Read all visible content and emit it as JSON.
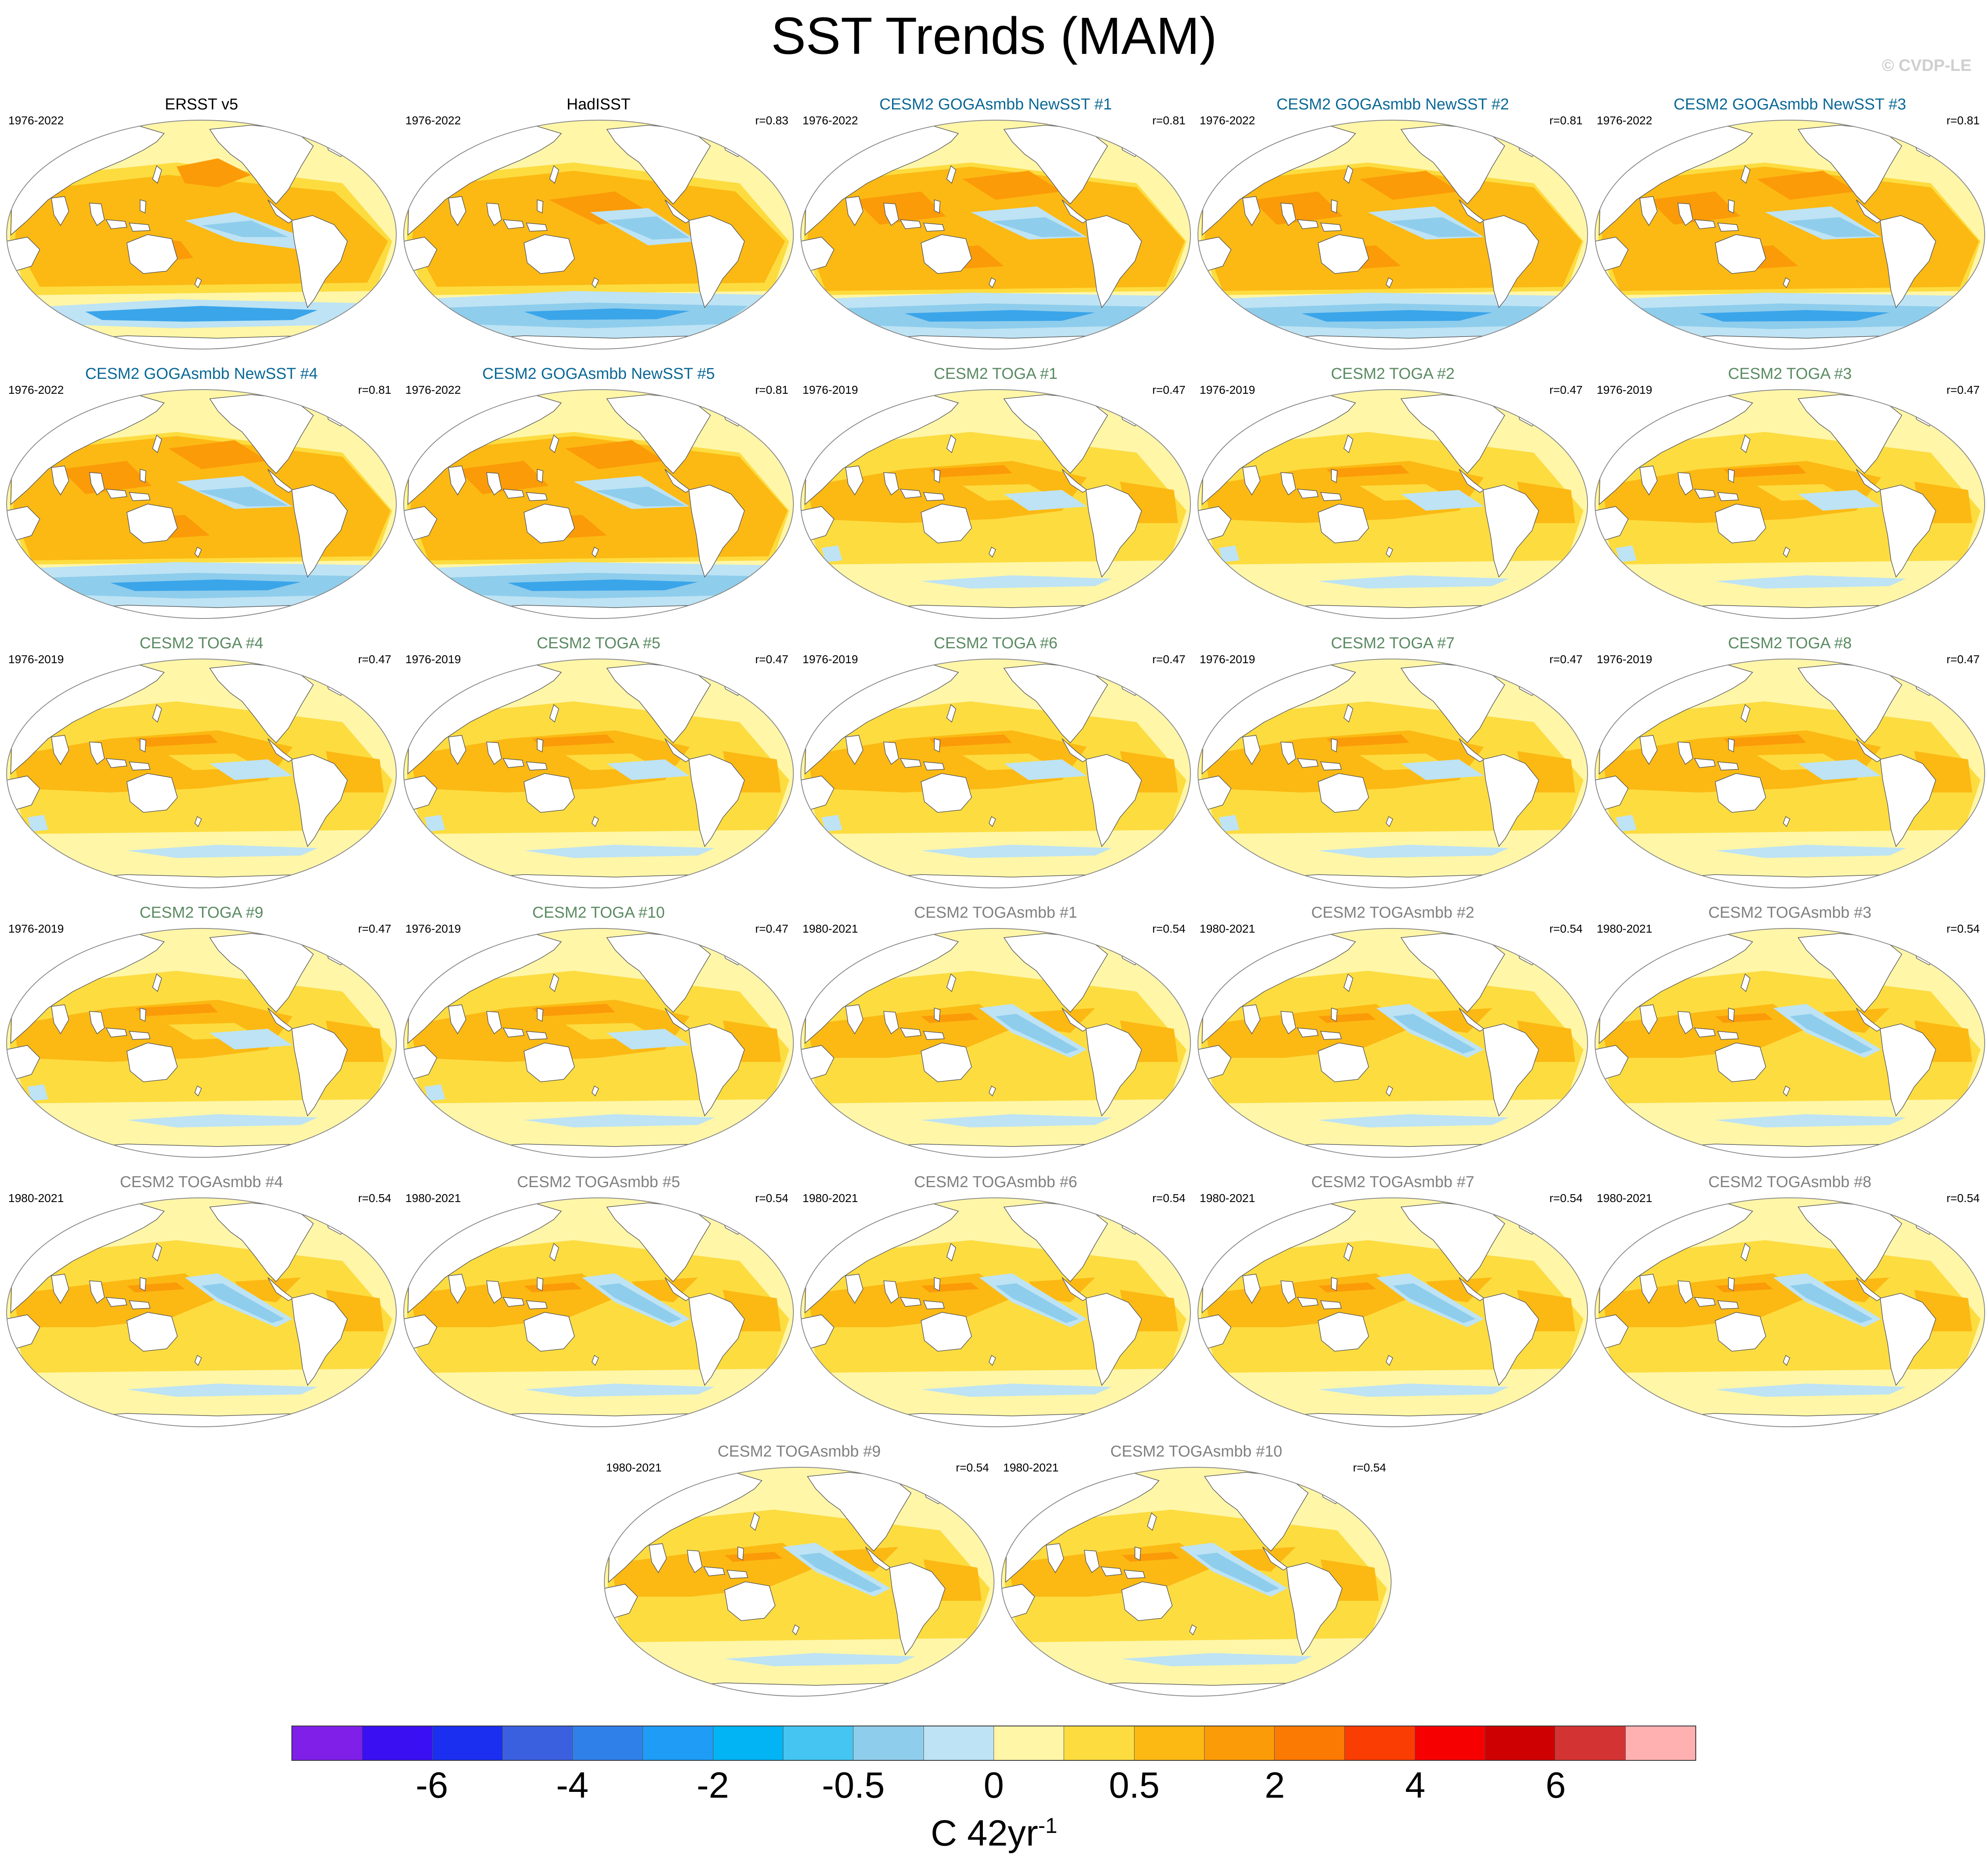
{
  "page": {
    "title": "SST Trends (MAM)",
    "watermark": "© CVDP-LE"
  },
  "colors": {
    "land": "#ffffff",
    "coast": "#555555",
    "ocean_base": "#fff6a8",
    "warm_light": "#fddc40",
    "warm_mid": "#fcb913",
    "warm_strong": "#fb9b08",
    "cool_light": "#bde3f4",
    "cool_mid": "#8fcdec",
    "cool_strong": "#3ba5ea",
    "title_obs": "#000000",
    "title_newsst": "#0a6896",
    "title_toga": "#5a8a62",
    "title_togasmbb": "#808080"
  },
  "colorbar": {
    "colors": [
      "#7f1fe8",
      "#3a0ff2",
      "#1a2ff0",
      "#3a60e0",
      "#3080ea",
      "#1e9cf6",
      "#02b4f3",
      "#44c5f2",
      "#8fcdec",
      "#bde3f4",
      "#fff6a8",
      "#fddc40",
      "#fcb913",
      "#fb9b08",
      "#fb7a04",
      "#fa3d02",
      "#f60002",
      "#cf0002",
      "#d43333",
      "#ffb1b1"
    ],
    "tick_labels": [
      "-6",
      "-4",
      "-2",
      "-0.5",
      "0",
      "0.5",
      "2",
      "4",
      "6"
    ],
    "units": "C 42yr",
    "units_sup": "-1"
  },
  "panels": [
    {
      "name": "ERSST v5",
      "period": "1976-2022",
      "corr": "",
      "group": "obs",
      "pattern": "obs1"
    },
    {
      "name": "HadISST",
      "period": "1976-2022",
      "corr": "r=0.83",
      "group": "obs",
      "pattern": "obs2"
    },
    {
      "name": "CESM2 GOGAsmbb NewSST #1",
      "period": "1976-2022",
      "corr": "r=0.81",
      "group": "newsst",
      "pattern": "newsst"
    },
    {
      "name": "CESM2 GOGAsmbb NewSST #2",
      "period": "1976-2022",
      "corr": "r=0.81",
      "group": "newsst",
      "pattern": "newsst"
    },
    {
      "name": "CESM2 GOGAsmbb NewSST #3",
      "period": "1976-2022",
      "corr": "r=0.81",
      "group": "newsst",
      "pattern": "newsst"
    },
    {
      "name": "CESM2 GOGAsmbb NewSST #4",
      "period": "1976-2022",
      "corr": "r=0.81",
      "group": "newsst",
      "pattern": "newsst"
    },
    {
      "name": "CESM2 GOGAsmbb NewSST #5",
      "period": "1976-2022",
      "corr": "r=0.81",
      "group": "newsst",
      "pattern": "newsst"
    },
    {
      "name": "CESM2 TOGA #1",
      "period": "1976-2019",
      "corr": "r=0.47",
      "group": "toga",
      "pattern": "toga"
    },
    {
      "name": "CESM2 TOGA #2",
      "period": "1976-2019",
      "corr": "r=0.47",
      "group": "toga",
      "pattern": "toga"
    },
    {
      "name": "CESM2 TOGA #3",
      "period": "1976-2019",
      "corr": "r=0.47",
      "group": "toga",
      "pattern": "toga"
    },
    {
      "name": "CESM2 TOGA #4",
      "period": "1976-2019",
      "corr": "r=0.47",
      "group": "toga",
      "pattern": "toga"
    },
    {
      "name": "CESM2 TOGA #5",
      "period": "1976-2019",
      "corr": "r=0.47",
      "group": "toga",
      "pattern": "toga"
    },
    {
      "name": "CESM2 TOGA #6",
      "period": "1976-2019",
      "corr": "r=0.47",
      "group": "toga",
      "pattern": "toga"
    },
    {
      "name": "CESM2 TOGA #7",
      "period": "1976-2019",
      "corr": "r=0.47",
      "group": "toga",
      "pattern": "toga"
    },
    {
      "name": "CESM2 TOGA #8",
      "period": "1976-2019",
      "corr": "r=0.47",
      "group": "toga",
      "pattern": "toga"
    },
    {
      "name": "CESM2 TOGA #9",
      "period": "1976-2019",
      "corr": "r=0.47",
      "group": "toga",
      "pattern": "toga"
    },
    {
      "name": "CESM2 TOGA #10",
      "period": "1976-2019",
      "corr": "r=0.47",
      "group": "toga",
      "pattern": "toga"
    },
    {
      "name": "CESM2 TOGAsmbb #1",
      "period": "1980-2021",
      "corr": "r=0.54",
      "group": "togasmbb",
      "pattern": "togasmbb"
    },
    {
      "name": "CESM2 TOGAsmbb #2",
      "period": "1980-2021",
      "corr": "r=0.54",
      "group": "togasmbb",
      "pattern": "togasmbb"
    },
    {
      "name": "CESM2 TOGAsmbb #3",
      "period": "1980-2021",
      "corr": "r=0.54",
      "group": "togasmbb",
      "pattern": "togasmbb"
    },
    {
      "name": "CESM2 TOGAsmbb #4",
      "period": "1980-2021",
      "corr": "r=0.54",
      "group": "togasmbb",
      "pattern": "togasmbb"
    },
    {
      "name": "CESM2 TOGAsmbb #5",
      "period": "1980-2021",
      "corr": "r=0.54",
      "group": "togasmbb",
      "pattern": "togasmbb"
    },
    {
      "name": "CESM2 TOGAsmbb #6",
      "period": "1980-2021",
      "corr": "r=0.54",
      "group": "togasmbb",
      "pattern": "togasmbb"
    },
    {
      "name": "CESM2 TOGAsmbb #7",
      "period": "1980-2021",
      "corr": "r=0.54",
      "group": "togasmbb",
      "pattern": "togasmbb"
    },
    {
      "name": "CESM2 TOGAsmbb #8",
      "period": "1980-2021",
      "corr": "r=0.54",
      "group": "togasmbb",
      "pattern": "togasmbb"
    },
    {
      "name": "CESM2 TOGAsmbb #9",
      "period": "1980-2021",
      "corr": "r=0.54",
      "group": "togasmbb",
      "pattern": "togasmbb"
    },
    {
      "name": "CESM2 TOGAsmbb #10",
      "period": "1980-2021",
      "corr": "r=0.54",
      "group": "togasmbb",
      "pattern": "togasmbb"
    }
  ]
}
